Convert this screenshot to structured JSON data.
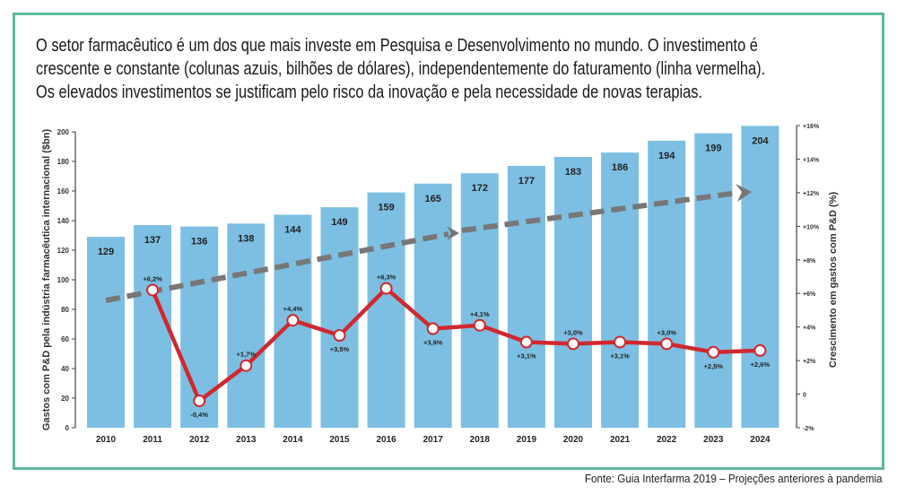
{
  "intro": {
    "lines": [
      "O setor farmacêutico é um dos que mais investe em Pesquisa e Desenvolvimento no mundo. O investimento é",
      "crescente e constante (colunas azuis, bilhões de dólares), independentemente do faturamento (linha vermelha).",
      "Os elevados investimentos se justificam pelo risco da inovação e pela necessidade de novas terapias."
    ]
  },
  "footer": "Fonte: Guia Interfarma 2019 – Projeções anteriores à pandemia",
  "colors": {
    "frame": "#5cb89f",
    "bar": "#7dbfe2",
    "line": "#d0282e",
    "trend": "#777777"
  },
  "chart_data": {
    "type": "bar+line",
    "categories": [
      "2010",
      "2011",
      "2012",
      "2013",
      "2014",
      "2015",
      "2016",
      "2017",
      "2018",
      "2019",
      "2020",
      "2021",
      "2022",
      "2023",
      "2024"
    ],
    "bars": {
      "values": [
        129,
        137,
        136,
        138,
        144,
        149,
        159,
        165,
        172,
        177,
        183,
        186,
        194,
        199,
        204
      ],
      "labels": [
        "129",
        "137",
        "136",
        "138",
        "144",
        "149",
        "159",
        "165",
        "172",
        "177",
        "183",
        "186",
        "194",
        "199",
        "204"
      ],
      "axis": "left"
    },
    "line": {
      "years": [
        "2011",
        "2012",
        "2013",
        "2014",
        "2015",
        "2016",
        "2017",
        "2018",
        "2019",
        "2020",
        "2021",
        "2022",
        "2023",
        "2024"
      ],
      "values": [
        6.2,
        -0.4,
        1.7,
        4.4,
        3.5,
        6.3,
        3.9,
        4.1,
        3.1,
        3.0,
        3.1,
        3.0,
        2.5,
        2.6
      ],
      "labels": [
        "+6,2%",
        "-0,4%",
        "+1,7%",
        "+4,4%",
        "+3,5%",
        "+6,3%",
        "+3,9%",
        "+4,1%",
        "+3,1%",
        "+3,0%",
        "+3,1%",
        "+3,0%",
        "+2,5%",
        "+2,6%"
      ],
      "label_above": [
        true,
        false,
        true,
        true,
        false,
        true,
        false,
        true,
        false,
        true,
        false,
        true,
        false,
        false
      ],
      "axis": "right"
    },
    "trend_arrow": "dashed grey increasing",
    "ylabel": "Gastos com P&D pela indústria farmacêutica internacional ($bn)",
    "y2label": "Crescimento em gastos com P&D (%)",
    "ylim": [
      0,
      200
    ],
    "yticks": [
      "0",
      "20",
      "40",
      "60",
      "80",
      "100",
      "120",
      "140",
      "160",
      "180",
      "200"
    ],
    "y2lim": [
      -2,
      16
    ],
    "y2ticks": [
      "-2%",
      "0",
      "+2%",
      "+4%",
      "+6%",
      "+8%",
      "+10%",
      "+12%",
      "+14%",
      "+16%"
    ],
    "grid": false
  }
}
